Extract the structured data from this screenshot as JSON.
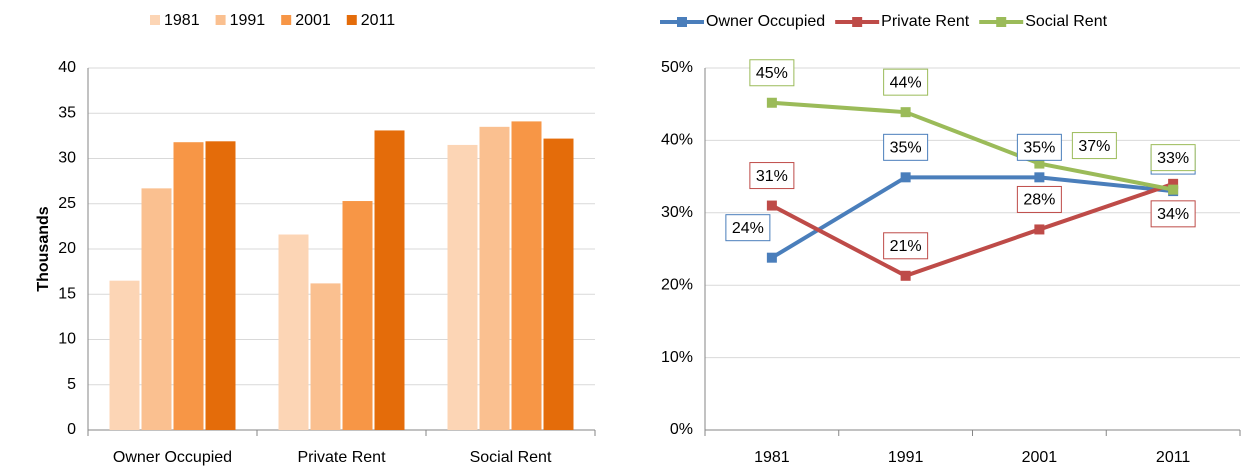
{
  "chart_data": [
    {
      "type": "bar",
      "y_label": "Thousands",
      "categories": [
        "Owner Occupied",
        "Private Rent",
        "Social Rent"
      ],
      "series": [
        {
          "name": "1981",
          "color": "#fcd5b5",
          "values": [
            16.5,
            21.6,
            31.5
          ]
        },
        {
          "name": "1991",
          "color": "#fac090",
          "values": [
            26.7,
            16.2,
            33.5
          ]
        },
        {
          "name": "2001",
          "color": "#f79646",
          "values": [
            31.8,
            25.3,
            34.1
          ]
        },
        {
          "name": "2011",
          "color": "#e46c0a",
          "values": [
            31.9,
            33.1,
            32.2
          ]
        }
      ],
      "ylim": [
        0,
        40
      ],
      "yticks": [
        0,
        5,
        10,
        15,
        20,
        25,
        30,
        35,
        40
      ],
      "grid": true
    },
    {
      "type": "line",
      "categories": [
        "1981",
        "1991",
        "2001",
        "2011"
      ],
      "series": [
        {
          "name": "Owner Occupied",
          "color": "#4a7ebb",
          "values": [
            23.8,
            34.9,
            34.9,
            33
          ],
          "value_labels": [
            "24%",
            "35%",
            "35%",
            "33%"
          ]
        },
        {
          "name": "Private Rent",
          "color": "#be4b48",
          "values": [
            31,
            21.3,
            27.7,
            34
          ],
          "value_labels": [
            "31%",
            "21%",
            "28%",
            "34%"
          ]
        },
        {
          "name": "Social Rent",
          "color": "#9bbb59",
          "values": [
            45.2,
            43.9,
            36.8,
            33.2
          ],
          "value_labels": [
            "45%",
            "44%",
            "37%",
            "33%"
          ]
        }
      ],
      "ylim": [
        0,
        50
      ],
      "yticks": [
        {
          "value": 0,
          "label": "0%"
        },
        {
          "value": 10,
          "label": "10%"
        },
        {
          "value": 20,
          "label": "20%"
        },
        {
          "value": 30,
          "label": "30%"
        },
        {
          "value": 40,
          "label": "40%"
        },
        {
          "value": 50,
          "label": "50%"
        }
      ],
      "grid": true
    }
  ]
}
